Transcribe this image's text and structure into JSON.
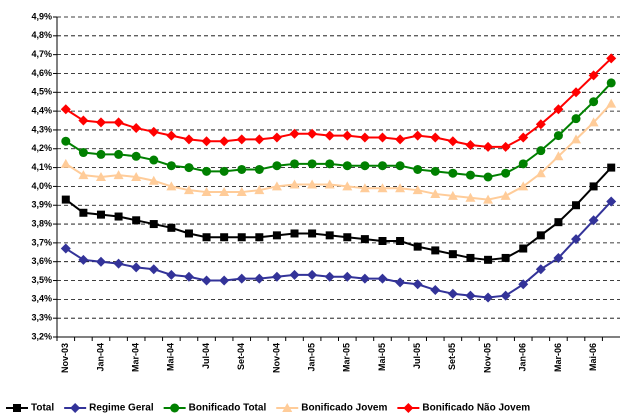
{
  "chart_data": {
    "type": "line",
    "categories": [
      "Nov-03",
      null,
      "Jan-04",
      null,
      "Mar-04",
      null,
      "Mai-04",
      null,
      "Jul-04",
      null,
      "Set-04",
      null,
      "Nov-04",
      null,
      "Jan-05",
      null,
      "Mar-05",
      null,
      "Mai-05",
      null,
      "Jul-05",
      null,
      "Set-05",
      null,
      "Nov-05",
      null,
      "Jan-06",
      null,
      "Mar-06",
      null,
      "Mai-06",
      null
    ],
    "series": [
      {
        "name": "Total",
        "color": "#000000",
        "marker": "square",
        "values": [
          3.93,
          3.86,
          3.85,
          3.84,
          3.82,
          3.8,
          3.78,
          3.75,
          3.73,
          3.73,
          3.73,
          3.73,
          3.74,
          3.75,
          3.75,
          3.74,
          3.73,
          3.72,
          3.71,
          3.71,
          3.68,
          3.66,
          3.64,
          3.62,
          3.61,
          3.62,
          3.67,
          3.74,
          3.81,
          3.9,
          4.0,
          4.1
        ]
      },
      {
        "name": "Regime Geral",
        "color": "#333399",
        "marker": "diamond",
        "values": [
          3.67,
          3.61,
          3.6,
          3.59,
          3.57,
          3.56,
          3.53,
          3.52,
          3.5,
          3.5,
          3.51,
          3.51,
          3.52,
          3.53,
          3.53,
          3.52,
          3.52,
          3.51,
          3.51,
          3.49,
          3.48,
          3.45,
          3.43,
          3.42,
          3.41,
          3.42,
          3.48,
          3.56,
          3.62,
          3.72,
          3.82,
          3.92
        ]
      },
      {
        "name": "Bonificado Total",
        "color": "#008000",
        "marker": "circle",
        "values": [
          4.24,
          4.18,
          4.17,
          4.17,
          4.16,
          4.14,
          4.11,
          4.1,
          4.08,
          4.08,
          4.09,
          4.09,
          4.11,
          4.12,
          4.12,
          4.12,
          4.11,
          4.11,
          4.11,
          4.11,
          4.09,
          4.08,
          4.07,
          4.06,
          4.05,
          4.07,
          4.12,
          4.19,
          4.27,
          4.36,
          4.45,
          4.55
        ]
      },
      {
        "name": "Bonificado Jovem",
        "color": "#FFCC99",
        "marker": "triangle",
        "values": [
          4.12,
          4.06,
          4.05,
          4.06,
          4.05,
          4.03,
          4.0,
          3.98,
          3.97,
          3.97,
          3.97,
          3.98,
          4.0,
          4.01,
          4.01,
          4.01,
          4.0,
          3.99,
          3.99,
          3.99,
          3.98,
          3.96,
          3.95,
          3.94,
          3.93,
          3.95,
          4.0,
          4.07,
          4.16,
          4.25,
          4.34,
          4.44
        ]
      },
      {
        "name": "Bonificado Não Jovem",
        "color": "#FF0000",
        "marker": "diamond",
        "values": [
          4.41,
          4.35,
          4.34,
          4.34,
          4.31,
          4.29,
          4.27,
          4.25,
          4.24,
          4.24,
          4.25,
          4.25,
          4.26,
          4.28,
          4.28,
          4.27,
          4.27,
          4.26,
          4.26,
          4.25,
          4.27,
          4.26,
          4.24,
          4.22,
          4.21,
          4.21,
          4.26,
          4.33,
          4.41,
          4.5,
          4.59,
          4.68
        ]
      }
    ],
    "ylim": [
      3.2,
      4.9
    ],
    "yticks": [
      {
        "value": 3.2,
        "label": "3,2%"
      },
      {
        "value": 3.3,
        "label": "3,3%"
      },
      {
        "value": 3.4,
        "label": "3,4%"
      },
      {
        "value": 3.5,
        "label": "3,5%"
      },
      {
        "value": 3.6,
        "label": "3,6%"
      },
      {
        "value": 3.7,
        "label": "3,7%"
      },
      {
        "value": 3.8,
        "label": "3,8%"
      },
      {
        "value": 3.9,
        "label": "3,9%"
      },
      {
        "value": 4.0,
        "label": "4,0%"
      },
      {
        "value": 4.1,
        "label": "4,1%"
      },
      {
        "value": 4.2,
        "label": "4,2%"
      },
      {
        "value": 4.3,
        "label": "4,3%"
      },
      {
        "value": 4.4,
        "label": "4,4%"
      },
      {
        "value": 4.5,
        "label": "4,5%"
      },
      {
        "value": 4.6,
        "label": "4,6%"
      },
      {
        "value": 4.7,
        "label": "4,7%"
      },
      {
        "value": 4.8,
        "label": "4,8%"
      },
      {
        "value": 4.9,
        "label": "4,9%"
      }
    ],
    "grid": true,
    "legend": "bottom"
  }
}
